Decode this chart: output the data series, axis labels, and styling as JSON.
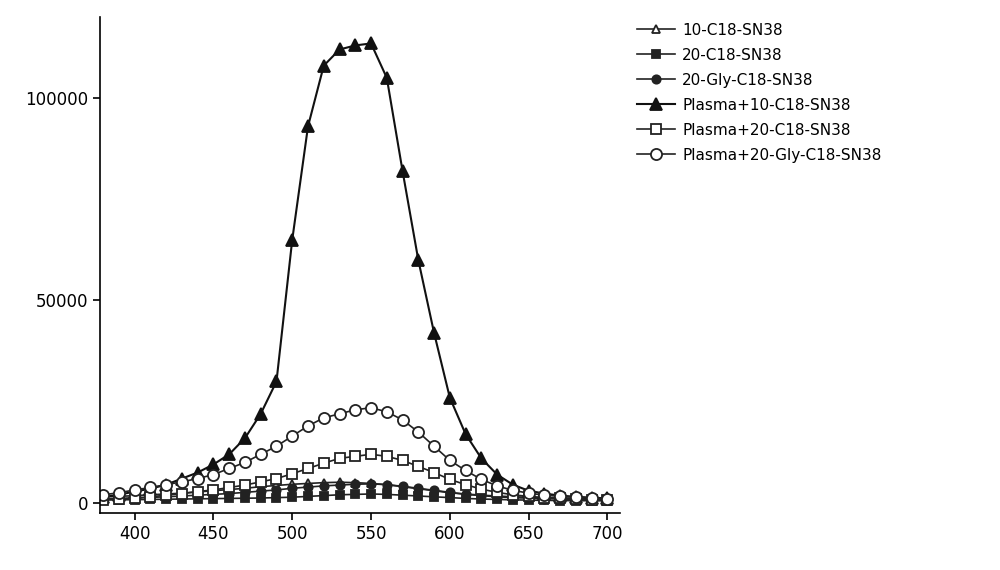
{
  "x": [
    380,
    390,
    400,
    410,
    420,
    430,
    440,
    450,
    460,
    470,
    480,
    490,
    500,
    510,
    520,
    530,
    540,
    550,
    560,
    570,
    580,
    590,
    600,
    610,
    620,
    630,
    640,
    650,
    660,
    670,
    680,
    690,
    700
  ],
  "series": {
    "10-C18-SN38": {
      "values": [
        1500,
        1600,
        1800,
        2000,
        2200,
        2400,
        2700,
        3000,
        3300,
        3600,
        4000,
        4300,
        4600,
        4800,
        5000,
        5100,
        5000,
        4800,
        4500,
        4000,
        3500,
        3000,
        2500,
        2200,
        1900,
        1700,
        1500,
        1400,
        1300,
        1200,
        1100,
        1000,
        900
      ],
      "marker": "^",
      "marker_filled": false,
      "linestyle": "-",
      "linewidth": 1.2,
      "markersize": 6,
      "color": "#222222",
      "label": "10-C18-SN38"
    },
    "20-C18-SN38": {
      "values": [
        700,
        750,
        800,
        850,
        900,
        950,
        1000,
        1050,
        1100,
        1150,
        1200,
        1300,
        1400,
        1600,
        1800,
        2000,
        2100,
        2200,
        2100,
        1900,
        1700,
        1500,
        1300,
        1100,
        950,
        850,
        750,
        680,
        620,
        580,
        550,
        520,
        500
      ],
      "marker": "s",
      "marker_filled": true,
      "linestyle": "-",
      "linewidth": 1.2,
      "markersize": 6,
      "color": "#222222",
      "label": "20-C18-SN38"
    },
    "20-Gly-C18-SN38": {
      "values": [
        1000,
        1100,
        1200,
        1350,
        1500,
        1700,
        1900,
        2100,
        2300,
        2600,
        2900,
        3200,
        3600,
        3900,
        4200,
        4400,
        4600,
        4700,
        4500,
        4100,
        3600,
        3100,
        2600,
        2100,
        1800,
        1500,
        1300,
        1150,
        1050,
        950,
        880,
        820,
        780
      ],
      "marker": "o",
      "marker_filled": true,
      "linestyle": "-",
      "linewidth": 1.2,
      "markersize": 6,
      "color": "#222222",
      "label": "20-Gly-C18-SN38"
    },
    "Plasma+10-C18-SN38": {
      "values": [
        1500,
        2000,
        2800,
        3500,
        4500,
        6000,
        7500,
        9500,
        12000,
        16000,
        22000,
        30000,
        65000,
        93000,
        108000,
        112000,
        113000,
        113500,
        105000,
        82000,
        60000,
        42000,
        26000,
        17000,
        11000,
        7000,
        4500,
        3000,
        2300,
        1800,
        1500,
        1300,
        1100
      ],
      "marker": "^",
      "marker_filled": true,
      "linestyle": "-",
      "linewidth": 1.5,
      "markersize": 8,
      "color": "#111111",
      "label": "Plasma+10-C18-SN38"
    },
    "Plasma+20-C18-SN38": {
      "values": [
        800,
        1000,
        1200,
        1500,
        1900,
        2300,
        2800,
        3200,
        3800,
        4400,
        5200,
        6000,
        7200,
        8500,
        9800,
        11000,
        11500,
        12000,
        11500,
        10500,
        9000,
        7500,
        5800,
        4500,
        3400,
        2600,
        2000,
        1600,
        1300,
        1100,
        950,
        820,
        700
      ],
      "marker": "s",
      "marker_filled": false,
      "linestyle": "-",
      "linewidth": 1.2,
      "markersize": 7,
      "color": "#222222",
      "label": "Plasma+20-C18-SN38"
    },
    "Plasma+20-Gly-C18-SN38": {
      "values": [
        2000,
        2500,
        3200,
        3800,
        4500,
        5200,
        6000,
        7000,
        8500,
        10000,
        12000,
        14000,
        16500,
        19000,
        21000,
        22000,
        23000,
        23500,
        22500,
        20500,
        17500,
        14000,
        10500,
        8000,
        5800,
        4200,
        3100,
        2400,
        1900,
        1600,
        1400,
        1200,
        1000
      ],
      "marker": "o",
      "marker_filled": false,
      "linestyle": "-",
      "linewidth": 1.2,
      "markersize": 8,
      "color": "#222222",
      "label": "Plasma+20-Gly-C18-SN38"
    }
  },
  "xlim": [
    378,
    708
  ],
  "ylim": [
    -2500,
    120000
  ],
  "yticks": [
    0,
    50000,
    100000
  ],
  "xticks": [
    400,
    450,
    500,
    550,
    600,
    650,
    700
  ],
  "background_color": "#ffffff",
  "legend_fontsize": 11,
  "tick_fontsize": 12
}
